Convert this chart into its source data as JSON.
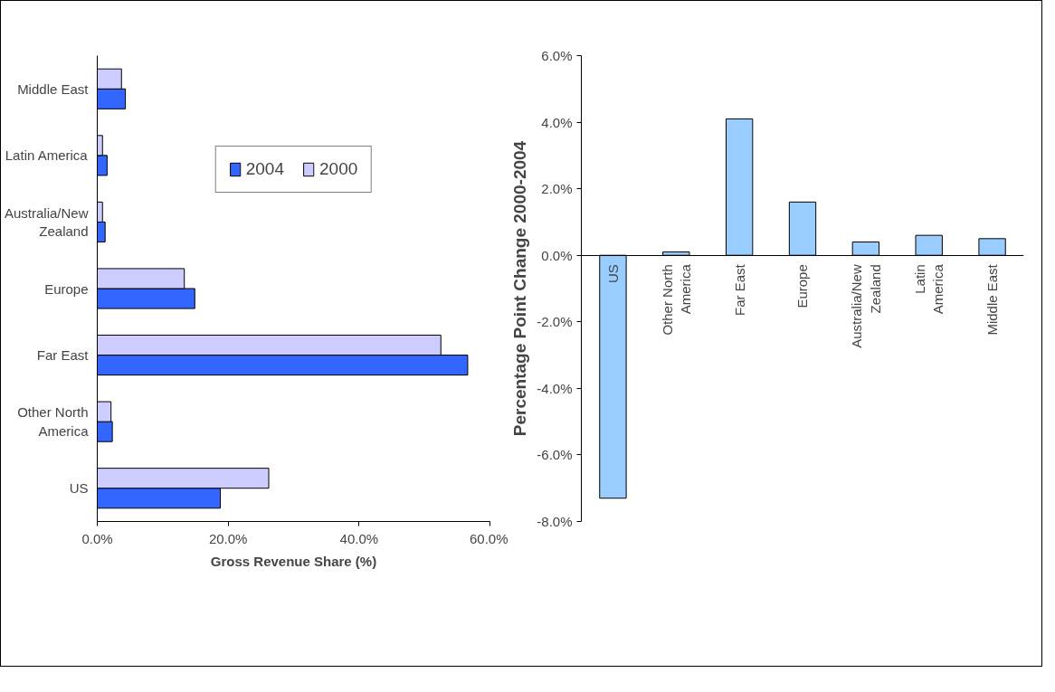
{
  "chart_data": [
    {
      "type": "bar",
      "orientation": "horizontal",
      "categories": [
        "Middle East",
        "Latin America",
        "Australia/New Zealand",
        "Europe",
        "Far East",
        "Other North America",
        "US"
      ],
      "series": [
        {
          "name": "2004",
          "color": "#3366ff",
          "values": [
            4.3,
            1.5,
            1.2,
            14.9,
            56.6,
            2.3,
            18.8
          ]
        },
        {
          "name": "2000",
          "color": "#ccccff",
          "values": [
            3.7,
            0.8,
            0.8,
            13.3,
            52.5,
            2.1,
            26.2
          ]
        }
      ],
      "xlabel": "Gross Revenue Share (%)",
      "xlim": [
        0,
        60
      ],
      "xticks": [
        {
          "value": 0,
          "label": "0.0%"
        },
        {
          "value": 20,
          "label": "20.0%"
        },
        {
          "value": 40,
          "label": "40.0%"
        },
        {
          "value": 60,
          "label": "60.0%"
        }
      ],
      "legend": "top",
      "grid": false
    },
    {
      "type": "bar",
      "categories": [
        "US",
        "Other North America",
        "Far East",
        "Europe",
        "Australia/New Zealand",
        "Latin America",
        "Middle East"
      ],
      "values": [
        -7.3,
        0.1,
        4.1,
        1.6,
        0.4,
        0.6,
        0.5
      ],
      "color": "#99ccff",
      "ylabel": "Percentage Point Change 2000-2004",
      "ylim": [
        -8,
        6
      ],
      "yticks": [
        {
          "value": -8,
          "label": "-8.0%"
        },
        {
          "value": -6,
          "label": "-6.0%"
        },
        {
          "value": -4,
          "label": "-4.0%"
        },
        {
          "value": -2,
          "label": "-2.0%"
        },
        {
          "value": 0,
          "label": "0.0%"
        },
        {
          "value": 2,
          "label": "2.0%"
        },
        {
          "value": 4,
          "label": "4.0%"
        },
        {
          "value": 6,
          "label": "6.0%"
        }
      ],
      "grid": false
    }
  ]
}
